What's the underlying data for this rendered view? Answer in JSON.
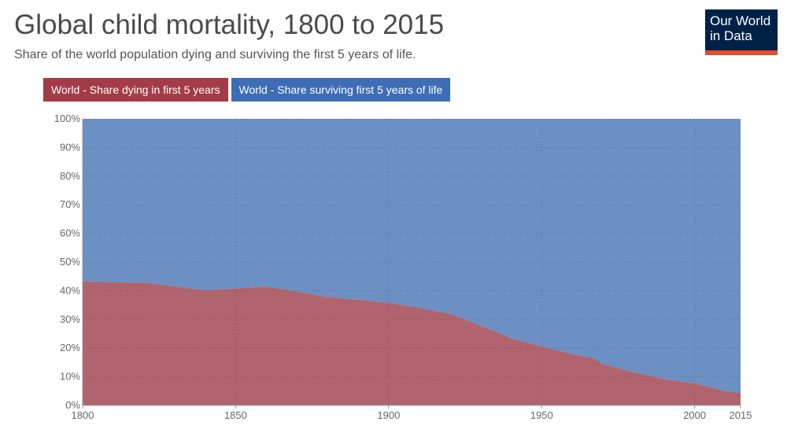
{
  "header": {
    "title": "Global child mortality, 1800 to 2015",
    "subtitle": "Share of the world population dying and surviving the first 5 years of life."
  },
  "logo": {
    "line1": "Our World",
    "line2": "in Data",
    "bg_color": "#002147",
    "bar_color": "#e04e2b"
  },
  "chart_data": {
    "type": "area",
    "stacked": true,
    "title": "Global child mortality, 1800 to 2015",
    "subtitle": "Share of the world population dying and surviving the first 5 years of life.",
    "xlabel": "",
    "ylabel": "",
    "xlim": [
      1800,
      2015
    ],
    "ylim": [
      0,
      100
    ],
    "x_ticks": [
      1800,
      1850,
      1900,
      1950,
      2000,
      2015
    ],
    "y_ticks": [
      0,
      10,
      20,
      30,
      40,
      50,
      60,
      70,
      80,
      90,
      100
    ],
    "y_tick_labels": [
      "0%",
      "10%",
      "20%",
      "30%",
      "40%",
      "50%",
      "60%",
      "70%",
      "80%",
      "90%",
      "100%"
    ],
    "grid": true,
    "legend_position": "top-left",
    "x": [
      1800,
      1810,
      1820,
      1830,
      1840,
      1850,
      1860,
      1870,
      1880,
      1890,
      1900,
      1910,
      1920,
      1930,
      1940,
      1950,
      1960,
      1966,
      1967,
      1970,
      1980,
      1990,
      2000,
      2005,
      2010,
      2015
    ],
    "series": [
      {
        "name": "World - Share dying in first 5 years",
        "color": "#b0646d",
        "legend_color": "#a33c48",
        "values": [
          43.3,
          43.0,
          42.9,
          41.6,
          40.2,
          40.8,
          41.4,
          39.8,
          37.8,
          36.9,
          35.8,
          34.1,
          32.0,
          27.9,
          23.5,
          20.6,
          17.9,
          16.7,
          16.5,
          14.4,
          11.6,
          9.2,
          7.7,
          6.4,
          5.0,
          4.3
        ]
      },
      {
        "name": "World - Share surviving first 5 years of life",
        "color": "#6c8fc4",
        "legend_color": "#3e6db5",
        "values": [
          56.7,
          57.0,
          57.1,
          58.4,
          59.8,
          59.2,
          58.6,
          60.2,
          62.2,
          63.1,
          64.2,
          65.9,
          68.0,
          72.1,
          76.5,
          79.4,
          82.1,
          83.3,
          83.5,
          85.6,
          88.4,
          90.8,
          92.3,
          93.6,
          95.0,
          95.7
        ]
      }
    ]
  }
}
